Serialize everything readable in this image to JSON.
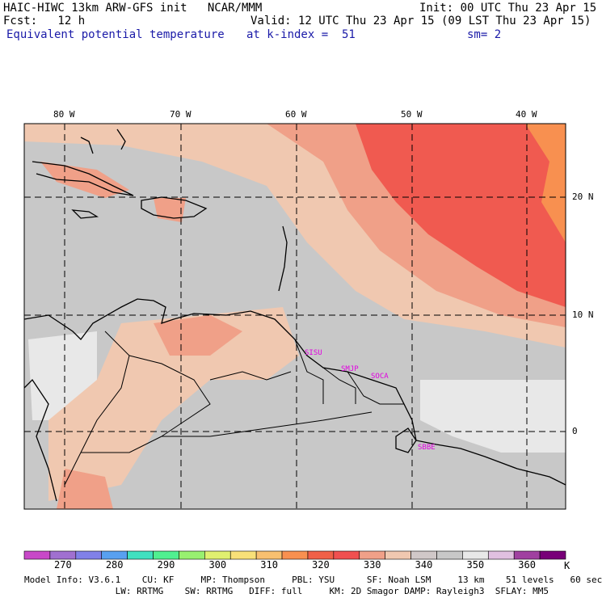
{
  "header": {
    "model_line": "HAIC-HIWC 13km ARW-GFS init   NCAR/MMM",
    "init": "Init: 00 UTC Thu 23 Apr 15",
    "fcst": "Fcst:   12 h",
    "valid": "Valid: 12 UTC Thu 23 Apr 15 (09 LST Thu 23 Apr 15)",
    "field": "Equivalent potential temperature",
    "level": "at k-index =  51",
    "smooth": "sm= 2"
  },
  "lon_ticks": [
    "80 W",
    "70 W",
    "60 W",
    "50 W",
    "40 W"
  ],
  "lat_ticks": [
    "20 N",
    "10 N",
    "0"
  ],
  "stations": [
    "SISU",
    "SMJP",
    "SOCA",
    "SBBE"
  ],
  "colorbar": {
    "labels": [
      "270",
      "280",
      "290",
      "300",
      "310",
      "320",
      "330",
      "340",
      "350",
      "360"
    ],
    "unit": "K",
    "colors": [
      "#c848c8",
      "#a070d0",
      "#8080e8",
      "#58a0f0",
      "#40e0c0",
      "#50f090",
      "#98f070",
      "#e0f070",
      "#f8e078",
      "#f8c070",
      "#f89050",
      "#f06048",
      "#f05050",
      "#f0a088",
      "#f0c8b0",
      "#d0c8c8",
      "#c8c8c8",
      "#e8e8e8",
      "#e0c0e0",
      "#a040a0",
      "#780078"
    ]
  },
  "footer": {
    "line1": "Model Info: V3.6.1    CU: KF     MP: Thompson     PBL: YSU      SF: Noah LSM     13 km    51 levels   60 sec",
    "line2": "                 LW: RRTMG    SW: RRTMG   DIFF: full     KM: 2D Smagor DAMP: Rayleigh3  SFLAY: MM5"
  }
}
